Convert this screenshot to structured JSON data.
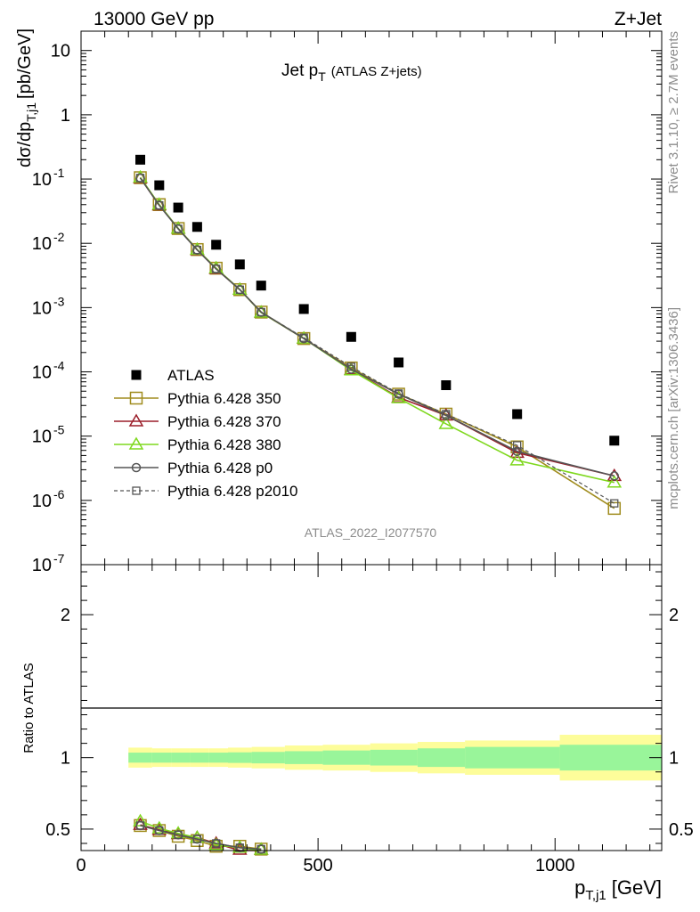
{
  "header": {
    "left_title": "13000 GeV pp",
    "right_title": "Z+Jet"
  },
  "side_labels": {
    "rivet": "Rivet 3.1.10, ≥ 2.7M events",
    "mcplots": "mcplots.cern.ch [arXiv:1306.3436]"
  },
  "chart_data": [
    {
      "type": "scatter",
      "title_main": "Jet p",
      "title_sub": "T",
      "title_note": "(ATLAS Z+jets)",
      "analysis_label": "ATLAS_2022_I2077570",
      "ylabel": "dσ/dp",
      "ylabel_sub": "T,j1",
      "ylabel_unit": "[pb/GeV]",
      "yscale": "log",
      "ylim": [
        1e-07,
        20
      ],
      "xlim": [
        0,
        1225
      ],
      "y_tick_labels": [
        {
          "value": 10,
          "label": "10"
        },
        {
          "value": 1,
          "label": "1"
        },
        {
          "value": 0.1,
          "base": "10",
          "exp": "-1"
        },
        {
          "value": 0.01,
          "base": "10",
          "exp": "-2"
        },
        {
          "value": 0.001,
          "base": "10",
          "exp": "-3"
        },
        {
          "value": 0.0001,
          "base": "10",
          "exp": "-4"
        },
        {
          "value": 1e-05,
          "base": "10",
          "exp": "-5"
        },
        {
          "value": 1e-06,
          "base": "10",
          "exp": "-6"
        },
        {
          "value": 1e-07,
          "base": "10",
          "exp": "-7"
        }
      ],
      "x": [
        125,
        165,
        205,
        245,
        285,
        335,
        380,
        470,
        570,
        670,
        770,
        920,
        1125
      ],
      "series": [
        {
          "name": "ATLAS",
          "color": "#000000",
          "marker": "filled-square",
          "values": [
            0.2,
            0.08,
            0.036,
            0.018,
            0.0095,
            0.0047,
            0.0022,
            0.00095,
            0.00035,
            0.00014,
            6.2e-05,
            2.2e-05,
            8.5e-06
          ]
        },
        {
          "name": "Pythia 6.428 350",
          "color": "#a08c1e",
          "marker": "open-square",
          "values": [
            0.105,
            0.04,
            0.017,
            0.008,
            0.0041,
            0.0019,
            0.00085,
            0.00033,
            0.000115,
            4.5e-05,
            2.2e-05,
            6.8e-06,
            7.5e-07
          ]
        },
        {
          "name": "Pythia 6.428 370",
          "color": "#9b1e2a",
          "marker": "open-triangle",
          "values": [
            0.104,
            0.039,
            0.017,
            0.0079,
            0.004,
            0.0019,
            0.00084,
            0.00033,
            0.000108,
            4e-05,
            2.1e-05,
            5.5e-06,
            2.4e-06
          ]
        },
        {
          "name": "Pythia 6.428 380",
          "color": "#7fd81e",
          "marker": "open-triangle",
          "values": [
            0.106,
            0.04,
            0.017,
            0.008,
            0.0041,
            0.0019,
            0.00084,
            0.00033,
            0.000106,
            3.9e-05,
            1.55e-05,
            4.2e-06,
            1.9e-06
          ]
        },
        {
          "name": "Pythia 6.428 p0",
          "color": "#555555",
          "marker": "open-circle",
          "values": [
            0.104,
            0.039,
            0.0168,
            0.0079,
            0.004,
            0.0019,
            0.00085,
            0.00033,
            0.00011,
            4.5e-05,
            2.1e-05,
            5.8e-06,
            2.4e-06
          ]
        },
        {
          "name": "Pythia 6.428 p2010",
          "color": "#555555",
          "marker": "open-square-small",
          "dashed": true,
          "values": [
            0.104,
            0.039,
            0.0168,
            0.0079,
            0.004,
            0.0019,
            0.00085,
            0.00034,
            0.00012,
            4.6e-05,
            2.2e-05,
            7.2e-06,
            9e-07
          ]
        }
      ]
    },
    {
      "type": "line",
      "ylabel": "Ratio to ATLAS",
      "xlabel": "p",
      "xlabel_sub": "T,j1",
      "xlabel_unit": "[GeV]",
      "xlim": [
        0,
        1225
      ],
      "ylim": [
        0.35,
        2.35
      ],
      "x_ticks": [
        0,
        500,
        1000
      ],
      "x_tick_labels": [
        "0",
        "500",
        "1000"
      ],
      "y_ticks": [
        0.5,
        1,
        2
      ],
      "y_tick_labels": [
        "0.5",
        "1",
        "2"
      ],
      "uncertainty_bands": {
        "bin_edges": [
          100,
          150,
          190,
          230,
          270,
          310,
          360,
          430,
          510,
          610,
          710,
          810,
          1010,
          1225
        ],
        "inner": [
          0.035,
          0.035,
          0.035,
          0.035,
          0.035,
          0.037,
          0.04,
          0.045,
          0.05,
          0.055,
          0.065,
          0.075,
          0.09
        ],
        "outer": [
          0.07,
          0.065,
          0.065,
          0.065,
          0.065,
          0.07,
          0.075,
          0.085,
          0.09,
          0.1,
          0.11,
          0.12,
          0.16
        ],
        "inner_color": "#99f59a",
        "outer_color": "#fdfd9a"
      },
      "x": [
        125,
        165,
        205,
        245,
        285,
        335,
        380
      ],
      "series": [
        {
          "name": "Pythia 6.428 350",
          "color": "#a08c1e",
          "values": [
            0.525,
            0.49,
            0.45,
            0.42,
            0.38,
            0.38,
            0.36
          ]
        },
        {
          "name": "Pythia 6.428 370",
          "color": "#9b1e2a",
          "values": [
            0.53,
            0.495,
            0.465,
            0.44,
            0.4,
            0.35,
            0.35
          ]
        },
        {
          "name": "Pythia 6.428 380",
          "color": "#7fd81e",
          "values": [
            0.555,
            0.505,
            0.47,
            0.44,
            0.39,
            0.37,
            0.35
          ]
        },
        {
          "name": "Pythia 6.428 p0",
          "color": "#555555",
          "values": [
            0.525,
            0.49,
            0.46,
            0.43,
            0.4,
            0.37,
            0.36
          ]
        },
        {
          "name": "Pythia 6.428 p2010",
          "color": "#555555",
          "values": [
            0.525,
            0.49,
            0.46,
            0.43,
            0.4,
            0.37,
            0.36
          ]
        }
      ]
    }
  ]
}
